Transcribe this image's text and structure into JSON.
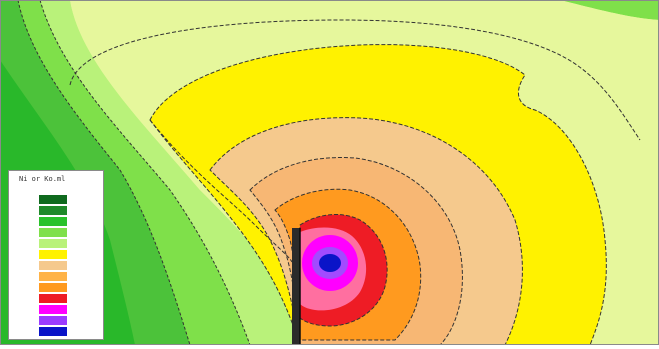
{
  "figure": {
    "description_colors": {
      "outer_green": "#4cc23a",
      "bright_green": "#29c22a",
      "mid_green": "#7fe04a",
      "light_green": "#b9f27a",
      "pale_yellow_green": "#e6f79c",
      "yellow": "#fff200",
      "peach": "#f5c98d",
      "orange": "#ff9a1f",
      "red": "#ee1c25",
      "magenta": "#ff00ff",
      "violet": "#9b3bff",
      "blue": "#0a14c8"
    }
  },
  "legend": {
    "title": "Ni or Ko.ml",
    "rows": [
      {
        "left": "",
        "right": "",
        "color": "#0f6a1e"
      },
      {
        "left": "",
        "right": "",
        "color": "#1f8a2a"
      },
      {
        "left": "",
        "right": "",
        "color": "#29c22a"
      },
      {
        "left": "",
        "right": "",
        "color": "#7fe04a"
      },
      {
        "left": "",
        "right": "",
        "color": "#b9f27a"
      },
      {
        "left": "",
        "right": "",
        "color": "#fff200"
      },
      {
        "left": "",
        "right": "",
        "color": "#f5c98d"
      },
      {
        "left": "",
        "right": "",
        "color": "#ffb347"
      },
      {
        "left": "",
        "right": "",
        "color": "#ff9a1f"
      },
      {
        "left": "",
        "right": "",
        "color": "#ee1c25"
      },
      {
        "left": "",
        "right": "",
        "color": "#ff00ff"
      },
      {
        "left": "",
        "right": "",
        "color": "#9b3bff"
      },
      {
        "left": "",
        "right": "",
        "color": "#0a14c8"
      }
    ]
  }
}
